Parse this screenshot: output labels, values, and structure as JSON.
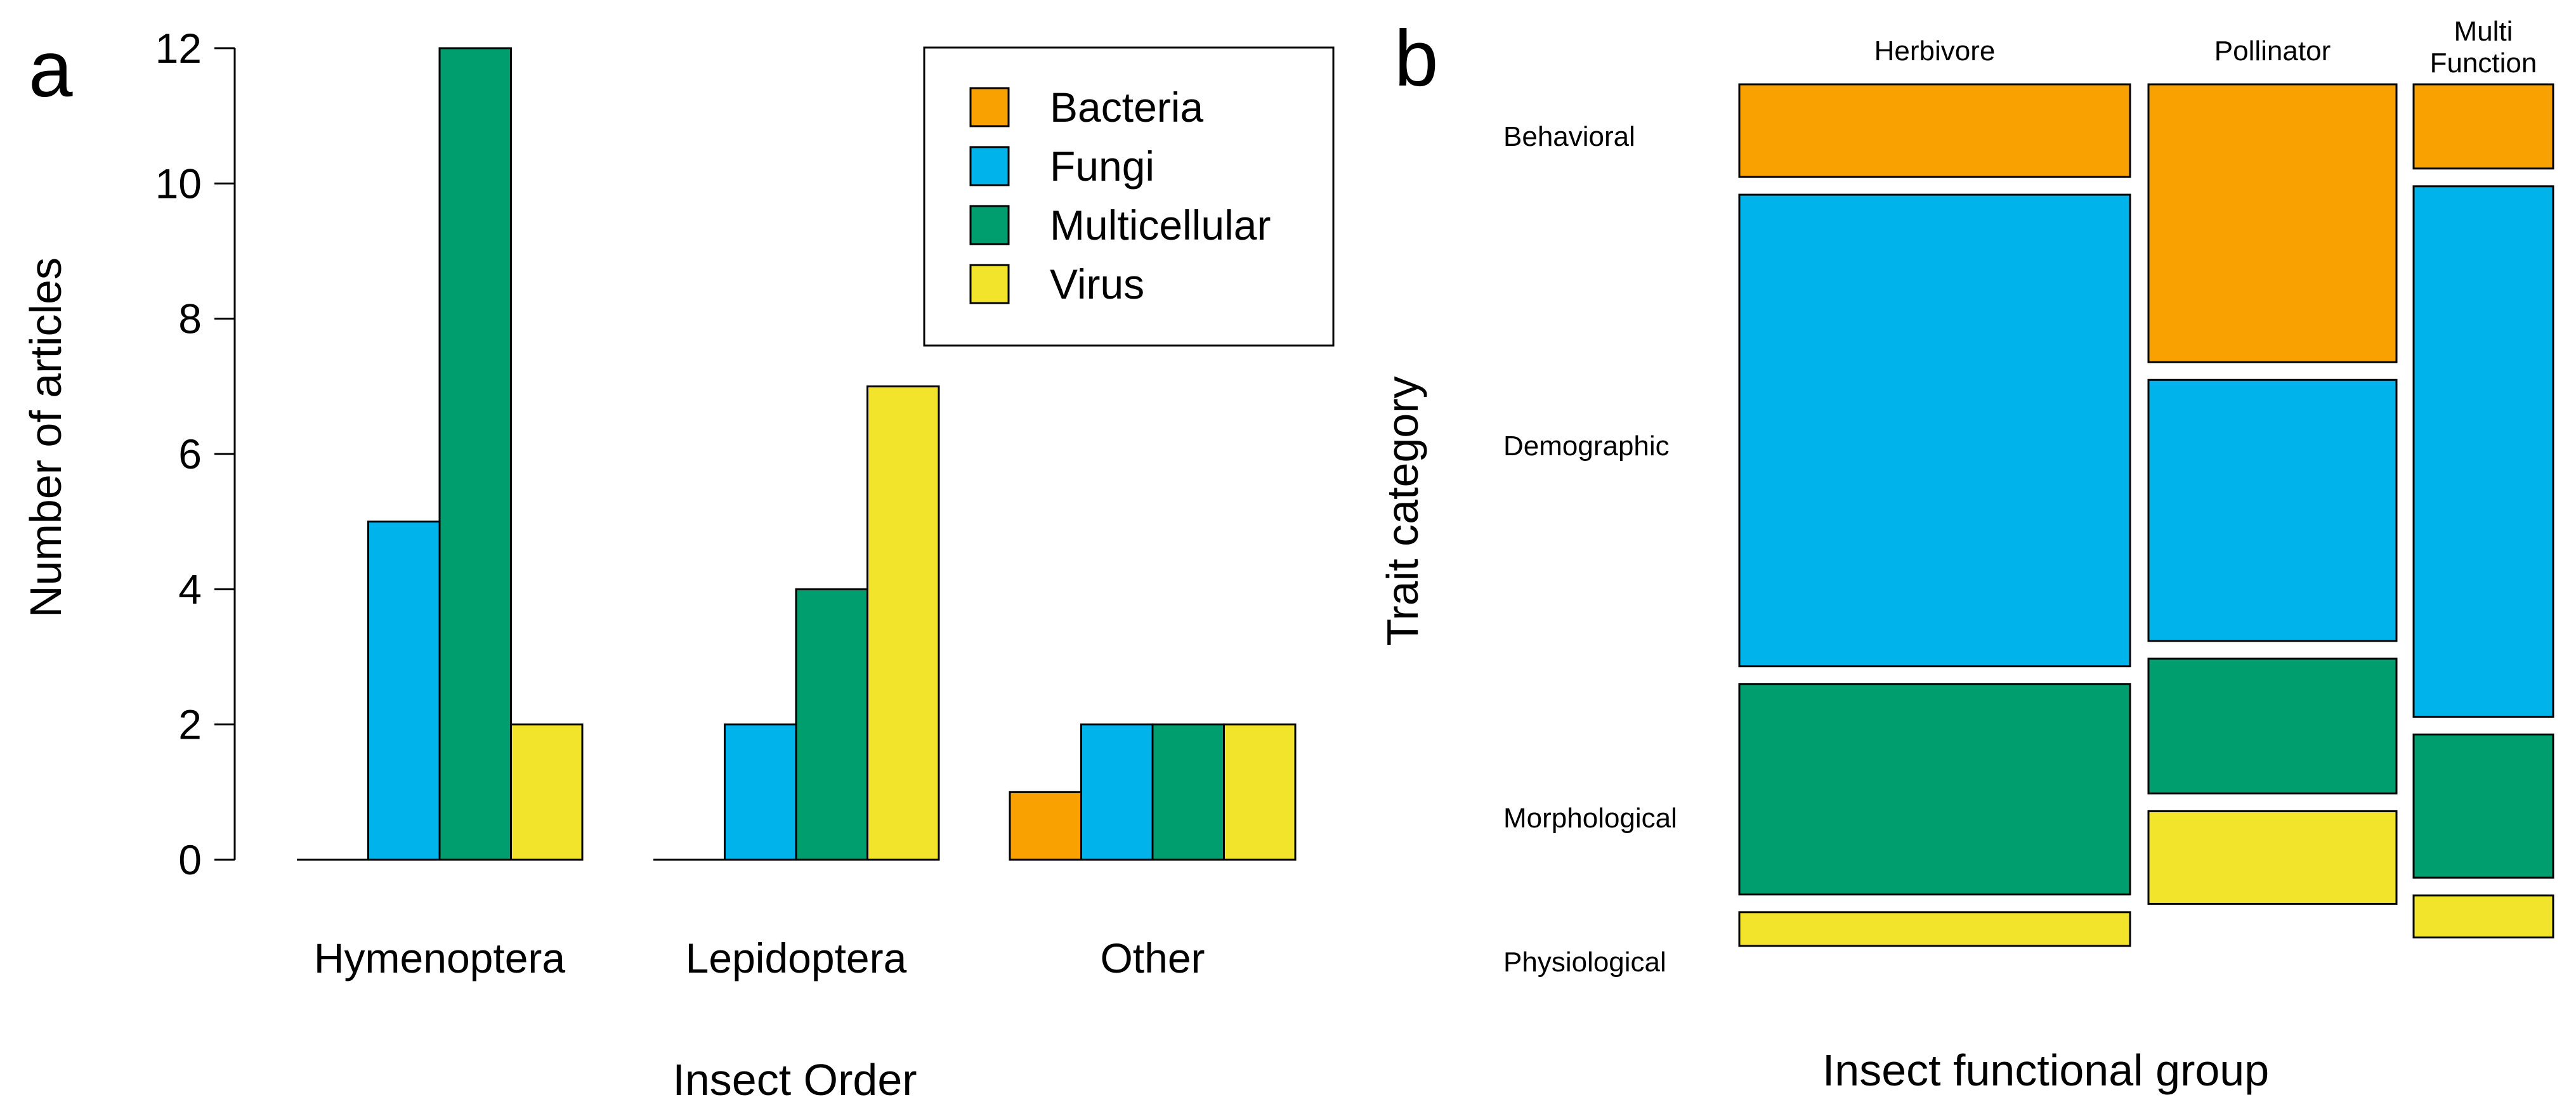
{
  "colors": {
    "Bacteria": "#F8A100",
    "Fungi": "#00B4EB",
    "Multicellular": "#009E6E",
    "Virus": "#F2E42A"
  },
  "chart_data": [
    {
      "panel": "a",
      "type": "bar",
      "xlabel": "Insect Order",
      "ylabel": "Number of articles",
      "ylim": [
        0,
        12
      ],
      "yticks": [
        0,
        2,
        4,
        6,
        8,
        10,
        12
      ],
      "categories": [
        "Hymenoptera",
        "Lepidoptera",
        "Other"
      ],
      "series": [
        {
          "name": "Bacteria",
          "values": [
            0,
            0,
            1
          ]
        },
        {
          "name": "Fungi",
          "values": [
            5,
            2,
            2
          ]
        },
        {
          "name": "Multicellular",
          "values": [
            12,
            4,
            2
          ]
        },
        {
          "name": "Virus",
          "values": [
            2,
            7,
            2
          ]
        }
      ],
      "legend": {
        "position": "top-right",
        "entries": [
          "Bacteria",
          "Fungi",
          "Multicellular",
          "Virus"
        ]
      }
    },
    {
      "panel": "b",
      "type": "mosaic",
      "xlabel": "Insect functional group",
      "ylabel": "Trait category",
      "columns": [
        "Herbivore",
        "Pollinator",
        "Multi Function"
      ],
      "column_label_lines": [
        [
          "Herbivore"
        ],
        [
          "Pollinator"
        ],
        [
          "Multi",
          "Function"
        ]
      ],
      "column_share": [
        0.48,
        0.32,
        0.16
      ],
      "rows": [
        "Behavioral",
        "Demographic",
        "Morphological",
        "Physiological"
      ],
      "row_colors": [
        "Bacteria",
        "Fungi",
        "Multicellular",
        "Virus"
      ],
      "proportions": [
        [
          0.11,
          0.56,
          0.25,
          0.04
        ],
        [
          0.33,
          0.31,
          0.16,
          0.11
        ],
        [
          0.1,
          0.63,
          0.17,
          0.05
        ]
      ]
    }
  ]
}
